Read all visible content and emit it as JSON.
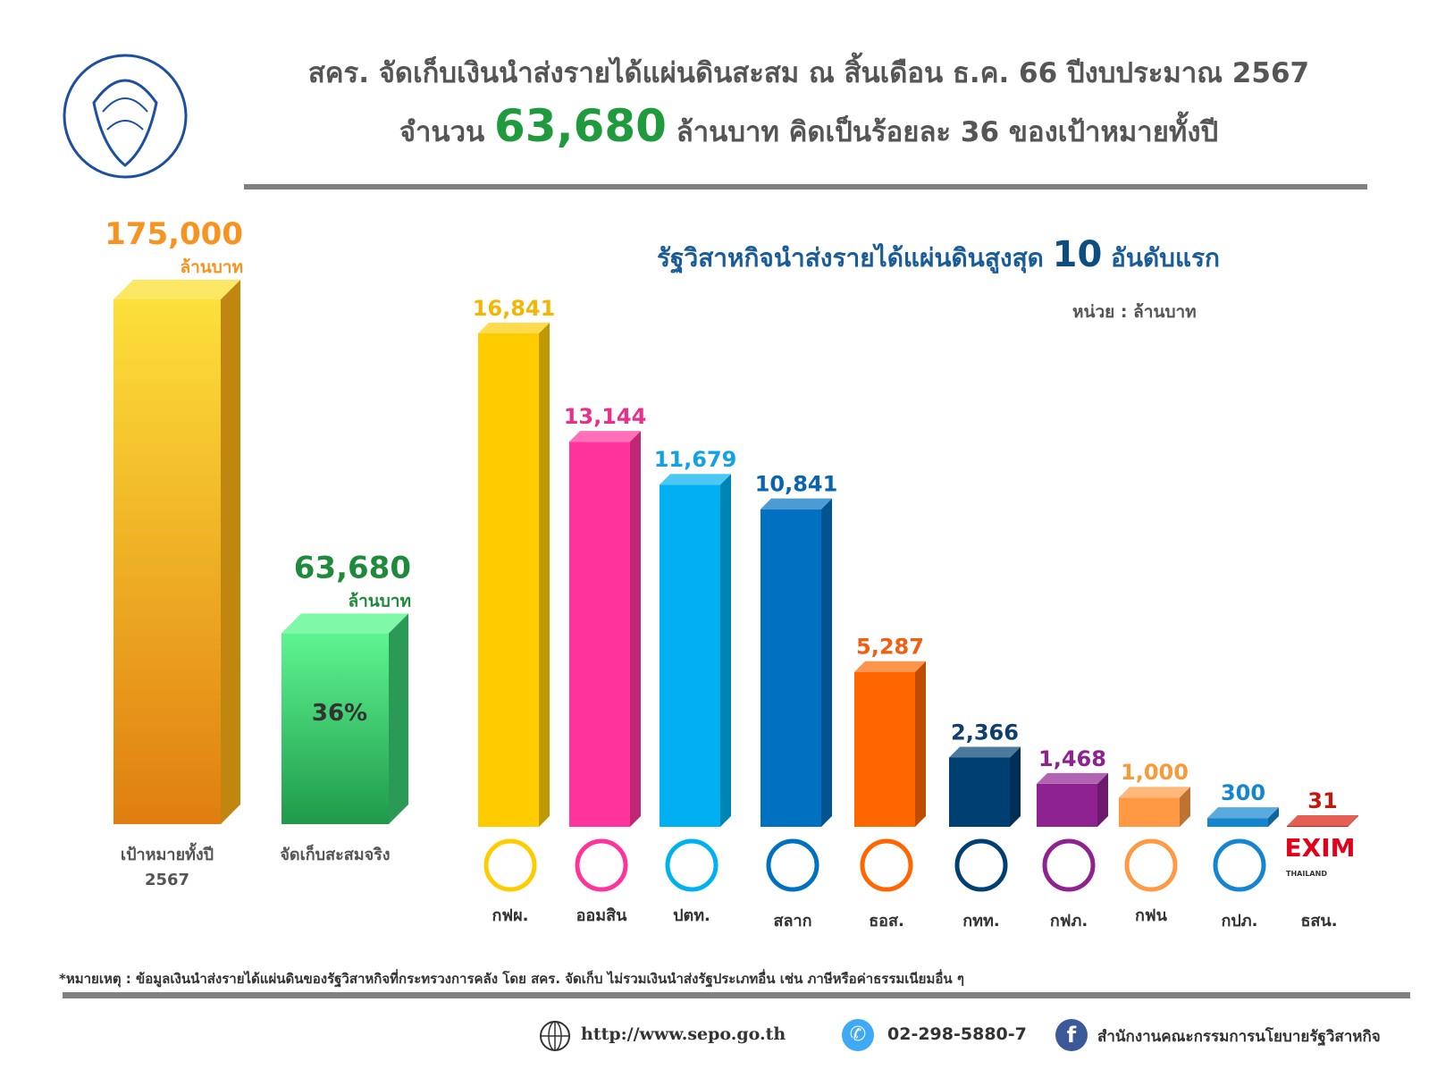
{
  "header": {
    "title_line1": "สคร. จัดเก็บเงินนำส่งรายได้แผ่นดินสะสม ณ สิ้นเดือน ธ.ค. 66 ปีงบประมาณ 2567",
    "title_line2_prefix": "จำนวน",
    "title_line2_amount": "63,680",
    "title_line2_suffix": "ล้านบาท คิดเป็นร้อยละ 36 ของเป้าหมายทั้งปี",
    "logo_text": "สำนักงานคณะกรรมการนโยบายรัฐวิสาหกิจ"
  },
  "chart_data": [
    {
      "type": "bar",
      "categories": [
        "เป้าหมายทั้งปี 2567",
        "จัดเก็บสะสมจริง"
      ],
      "values": [
        175000,
        63680
      ],
      "value_labels": [
        "175,000",
        "63,680"
      ],
      "value_unit": "ล้านบาท",
      "category_lines": [
        [
          "เป้าหมายทั้งปี",
          "2567"
        ],
        [
          "จัดเก็บสะสมจริง"
        ]
      ],
      "inner_label": "36%",
      "colors": [
        "#f6a623",
        "#4fd68a"
      ],
      "label_colors": [
        "#f7931e",
        "#1f8a3c"
      ]
    },
    {
      "type": "bar",
      "title_prefix": "รัฐวิสาหกิจนำส่งรายได้แผ่นดินสูงสุด",
      "title_number": "10",
      "title_suffix": "อันดับแรก",
      "unit_label": "หน่วย : ล้านบาท",
      "categories": [
        "กฟผ.",
        "ออมสิน",
        "ปตท.",
        "สลาก",
        "ธอส.",
        "กทท.",
        "กฟภ.",
        "กฟน",
        "กปภ.",
        "ธสน."
      ],
      "values": [
        16841,
        13144,
        11679,
        10841,
        5287,
        2366,
        1468,
        1000,
        300,
        31
      ],
      "value_labels": [
        "16,841",
        "13,144",
        "11,679",
        "10,841",
        "5,287",
        "2,366",
        "1,468",
        "1,000",
        "300",
        "31"
      ],
      "colors": [
        "#ffcc00",
        "#ff3399",
        "#00b0f0",
        "#0070c0",
        "#ff6600",
        "#003f72",
        "#8e2290",
        "#ff9944",
        "#1585d0",
        "#d91c0b"
      ],
      "label_colors": [
        "#f2b705",
        "#e8308a",
        "#12a0e6",
        "#0a64b0",
        "#f06012",
        "#0e3f6e",
        "#8e2290",
        "#f79a3a",
        "#1585d0",
        "#c8160c"
      ],
      "logo_text_exim": "EXIM",
      "logo_text_exim_sub": "THAILAND"
    }
  ],
  "footer": {
    "note": "*หมายเหตุ : ข้อมูลเงินนำส่งรายได้แผ่นดินของรัฐวิสาหกิจที่กระทรวงการคลัง โดย สคร. จัดเก็บ ไม่รวมเงินนำส่งรัฐประเภทอื่น เช่น ภาษีหรือค่าธรรมเนียมอื่น ๆ",
    "website": "http://www.sepo.go.th",
    "phone": "02-298-5880-7",
    "facebook": "สำนักงานคณะกรรมการนโยบายรัฐวิสาหกิจ",
    "icons": [
      "globe-icon",
      "phone-icon",
      "facebook-icon"
    ]
  }
}
